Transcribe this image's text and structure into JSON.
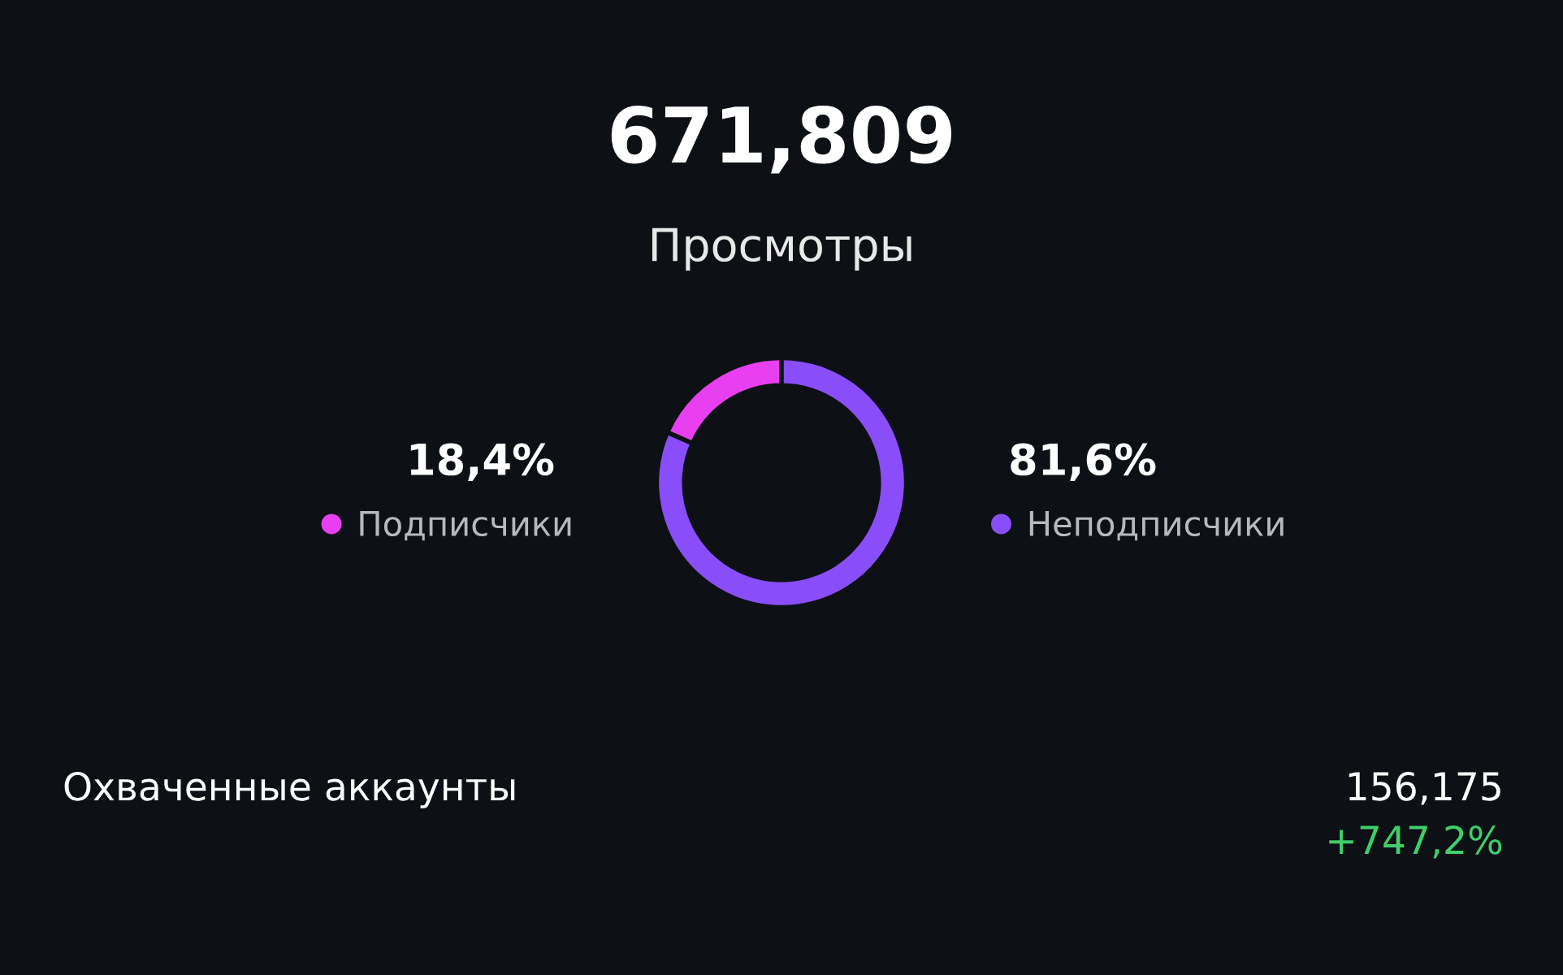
{
  "chart_data": {
    "type": "donut",
    "title": "671,809",
    "subtitle": "Просмотры",
    "categories": [
      "Подписчики",
      "Неподписчики"
    ],
    "values": [
      18.4,
      81.6
    ],
    "value_labels": [
      "18,4%",
      "81,6%"
    ],
    "colors": [
      "#e83ff0",
      "#8a4dfa"
    ],
    "legend": "right",
    "annotations": [
      "Охваченные аккаунты",
      "156,175",
      "+747,2%"
    ]
  }
}
